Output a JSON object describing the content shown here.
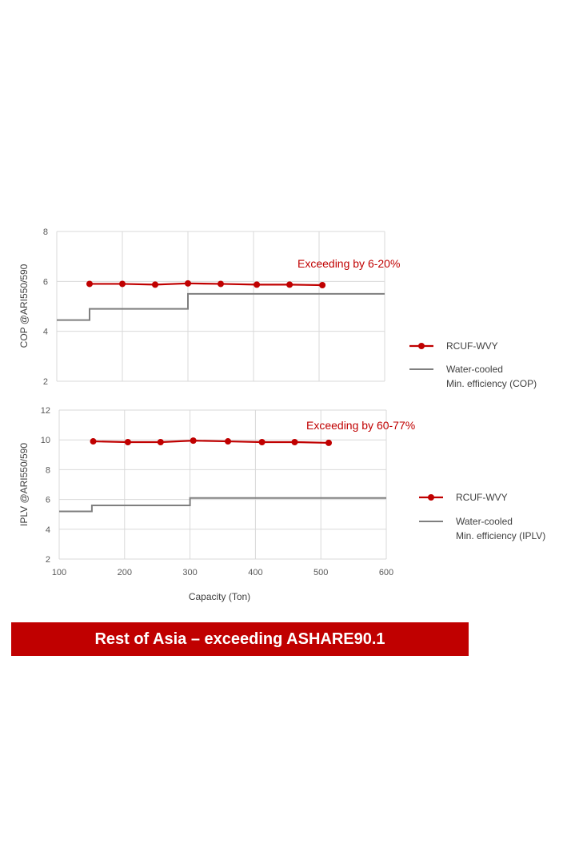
{
  "colors": {
    "rcuf": "#c00000",
    "min_eff": "#7f7f7f",
    "grid": "#d9d9d9",
    "banner": "#c00000"
  },
  "banner": {
    "text": "Rest of Asia – exceeding ASHARE90.1"
  },
  "chart_data": [
    {
      "type": "line",
      "ylabel": "COP @ARI550/590",
      "xlabel": "",
      "xlim": [
        100,
        600
      ],
      "ylim": [
        2,
        8
      ],
      "x_ticks": [
        "100",
        "200",
        "300",
        "400",
        "500",
        "600"
      ],
      "y_ticks": [
        "2",
        "4",
        "6",
        "8"
      ],
      "x_tick_values": [
        100,
        200,
        300,
        400,
        500,
        600
      ],
      "y_tick_values": [
        2,
        4,
        6,
        8
      ],
      "show_x_tick_labels": false,
      "grid": true,
      "legend_position": "right",
      "annotation": "Exceeding by 6-20%",
      "series": [
        {
          "name": "RCUF-WVY",
          "style": "line-markers",
          "x": [
            150,
            200,
            250,
            300,
            350,
            405,
            455,
            505
          ],
          "y": [
            5.9,
            5.9,
            5.87,
            5.92,
            5.9,
            5.87,
            5.87,
            5.85
          ]
        },
        {
          "name": "Water-cooled Min. efficiency (COP)",
          "name_lines": [
            "Water-cooled",
            "Min. efficiency (COP)"
          ],
          "style": "step",
          "x": [
            100,
            150,
            150,
            300,
            300,
            600
          ],
          "y": [
            4.45,
            4.45,
            4.9,
            4.9,
            5.5,
            5.5
          ]
        }
      ]
    },
    {
      "type": "line",
      "ylabel": "IPLV @ARI550/590",
      "xlabel": "Capacity (Ton)",
      "xlim": [
        100,
        600
      ],
      "ylim": [
        2,
        12
      ],
      "x_ticks": [
        "100",
        "200",
        "300",
        "400",
        "500",
        "600"
      ],
      "y_ticks": [
        "2",
        "4",
        "6",
        "8",
        "10",
        "12"
      ],
      "x_tick_values": [
        100,
        200,
        300,
        400,
        500,
        600
      ],
      "y_tick_values": [
        2,
        4,
        6,
        8,
        10,
        12
      ],
      "show_x_tick_labels": true,
      "grid": true,
      "legend_position": "right",
      "annotation": "Exceeding by 60-77%",
      "series": [
        {
          "name": "RCUF-WVY",
          "style": "line-markers",
          "x": [
            152,
            205,
            255,
            305,
            358,
            410,
            460,
            512
          ],
          "y": [
            9.9,
            9.85,
            9.85,
            9.95,
            9.9,
            9.85,
            9.85,
            9.8
          ]
        },
        {
          "name": "Water-cooled Min. efficiency (IPLV)",
          "name_lines": [
            "Water-cooled",
            "Min. efficiency (IPLV)"
          ],
          "style": "step",
          "x": [
            100,
            150,
            150,
            300,
            300,
            600
          ],
          "y": [
            5.2,
            5.2,
            5.6,
            5.6,
            6.1,
            6.1
          ]
        }
      ]
    }
  ]
}
